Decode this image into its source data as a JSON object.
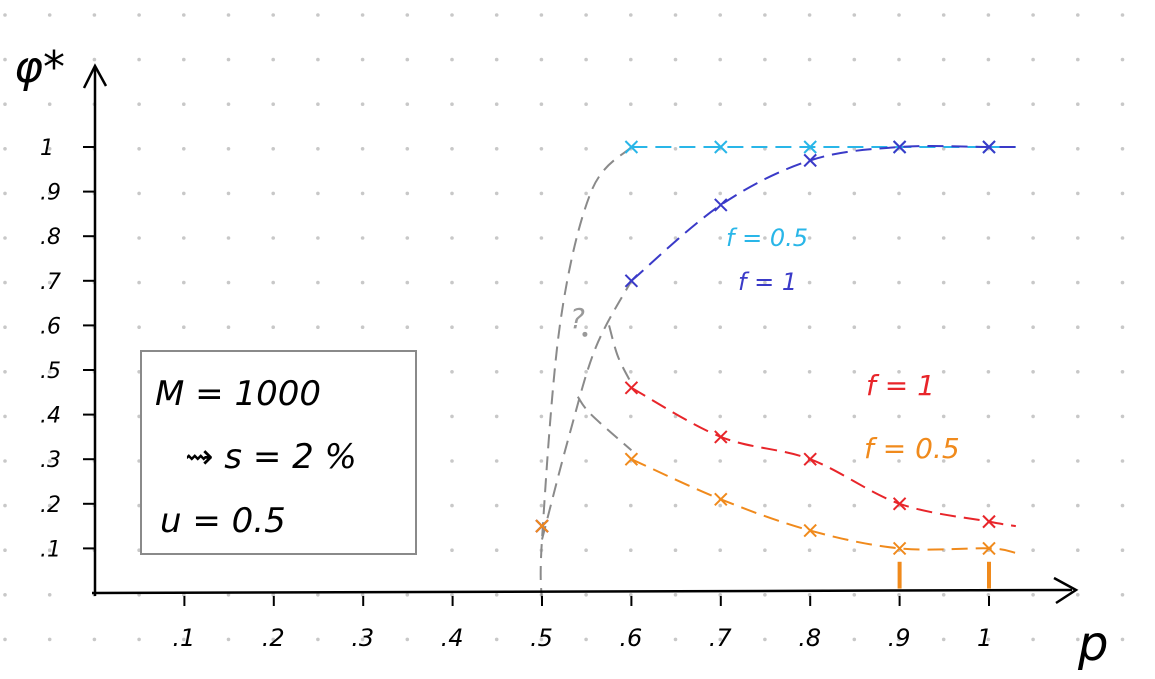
{
  "chart_data": {
    "type": "line",
    "title": "",
    "xlabel": "p",
    "ylabel": "φ*",
    "xlim": [
      0,
      1.03
    ],
    "ylim": [
      0,
      1.05
    ],
    "x_ticks": [
      0.1,
      0.2,
      0.3,
      0.4,
      0.5,
      0.6,
      0.7,
      0.8,
      0.9,
      1.0
    ],
    "x_tick_labels": [
      ".1",
      ".2",
      ".3",
      ".4",
      ".5",
      ".6",
      ".7",
      ".8",
      ".9",
      "1"
    ],
    "y_ticks": [
      0.1,
      0.2,
      0.3,
      0.4,
      0.5,
      0.6,
      0.7,
      0.8,
      0.9,
      1.0
    ],
    "y_tick_labels": [
      ".1",
      ".2",
      ".3",
      ".4",
      ".5",
      ".6",
      ".7",
      ".8",
      ".9",
      "1"
    ],
    "grid": "dotted",
    "series": [
      {
        "name": "f = 0.5",
        "color": "#29b6e8",
        "branch": "upper",
        "x": [
          0.5,
          0.6,
          0.7,
          0.8,
          0.9,
          1.0
        ],
        "y": [
          0.15,
          1.0,
          1.0,
          1.0,
          1.0,
          1.0
        ]
      },
      {
        "name": "f = 1",
        "color": "#3a3ac8",
        "branch": "upper",
        "x": [
          0.5,
          0.6,
          0.7,
          0.8,
          0.9,
          1.0
        ],
        "y": [
          0.15,
          0.7,
          0.87,
          0.97,
          1.0,
          1.0
        ]
      },
      {
        "name": "f = 1",
        "color": "#e8252a",
        "branch": "lower",
        "x": [
          0.5,
          0.6,
          0.7,
          0.8,
          0.9,
          1.0
        ],
        "y": [
          0.15,
          0.46,
          0.35,
          0.3,
          0.2,
          0.16
        ]
      },
      {
        "name": "f = 0.5",
        "color": "#f08a1c",
        "branch": "lower",
        "x": [
          0.5,
          0.6,
          0.7,
          0.8,
          0.9,
          1.0
        ],
        "y": [
          0.15,
          0.3,
          0.21,
          0.14,
          0.1,
          0.1
        ]
      }
    ],
    "annotations": {
      "question_mark": "?",
      "legend_upper": [
        "f = 0.5",
        "f = 1"
      ],
      "legend_lower": [
        "f = 1",
        "f = 0.5"
      ],
      "params_box": [
        "M = 1000",
        "⇝ s = 2 %",
        "u = 0.5"
      ]
    },
    "colors": {
      "axis": "#000000",
      "grid_dot": "#c8c8c8",
      "dashed_gray": "#8a8a8a",
      "box": "#8a8a8a"
    }
  }
}
